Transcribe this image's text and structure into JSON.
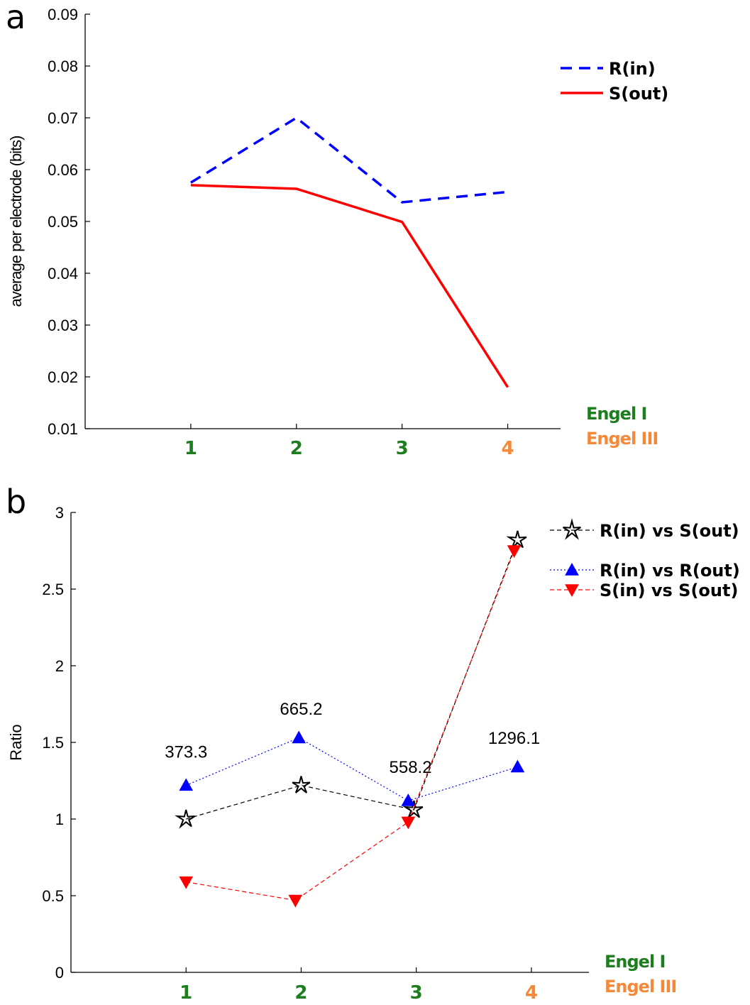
{
  "colors": {
    "engel1": "#1e7d1e",
    "engel3": "#f5893a",
    "blue": "#0000ff",
    "red": "#ff0000",
    "black": "#000000"
  },
  "chart_data": [
    {
      "panel_label": "a",
      "type": "line",
      "title": "",
      "xlabel": "",
      "ylabel": "average per electrode (bits)",
      "x": [
        1,
        2,
        3,
        4
      ],
      "xticklabels": [
        "1",
        "2",
        "3",
        "4"
      ],
      "xtick_groups": [
        "engel1",
        "engel1",
        "engel1",
        "engel3"
      ],
      "ylim": [
        0.01,
        0.09
      ],
      "yticks": [
        "0.01",
        "0.02",
        "0.03",
        "0.04",
        "0.05",
        "0.06",
        "0.07",
        "0.08",
        "0.09"
      ],
      "series": [
        {
          "name": "R(in)",
          "values": [
            0.0575,
            0.07,
            0.0537,
            0.0557
          ],
          "color": "#0000ff",
          "style": "dashed"
        },
        {
          "name": "S(out)",
          "values": [
            0.057,
            0.0563,
            0.0499,
            0.018
          ],
          "color": "#ff0000",
          "style": "solid"
        }
      ],
      "legend_position": "top-right",
      "group_labels": [
        "Engel I",
        "Engel III"
      ],
      "grid": false
    },
    {
      "panel_label": "b",
      "type": "line",
      "title": "",
      "xlabel": "",
      "ylabel": "Ratio",
      "x": [
        1,
        2,
        3,
        4
      ],
      "xticklabels": [
        "1",
        "2",
        "3",
        "4"
      ],
      "xtick_groups": [
        "engel1",
        "engel1",
        "engel1",
        "engel3"
      ],
      "ylim": [
        0,
        3
      ],
      "yticks": [
        "0",
        "0.5",
        "1",
        "1.5",
        "2",
        "2.5",
        "3"
      ],
      "series": [
        {
          "name": "R(in) vs S(out)",
          "x": [
            1,
            2,
            2.98,
            3.88
          ],
          "values": [
            1.0,
            1.22,
            1.06,
            2.82
          ],
          "color": "#000000",
          "marker": "star",
          "style": "dashed"
        },
        {
          "name": "R(in) vs R(out)",
          "x": [
            1,
            1.98,
            2.93,
            3.88
          ],
          "values": [
            1.22,
            1.53,
            1.12,
            1.34
          ],
          "color": "#0000ff",
          "marker": "triangle-up",
          "style": "dotted"
        },
        {
          "name": "S(in) vs S(out)",
          "x": [
            1,
            1.95,
            2.93,
            3.85
          ],
          "values": [
            0.59,
            0.47,
            0.98,
            2.75
          ],
          "color": "#ff0000",
          "marker": "triangle-down",
          "style": "dashed"
        }
      ],
      "annotations": [
        {
          "text": "373.3",
          "x": 1,
          "y": 1.4
        },
        {
          "text": "665.2",
          "x": 2,
          "y": 1.68
        },
        {
          "text": "558.2",
          "x": 2.95,
          "y": 1.3
        },
        {
          "text": "1296.1",
          "x": 3.85,
          "y": 1.49
        }
      ],
      "legend_position": "top-right",
      "group_labels": [
        "Engel I",
        "Engel III"
      ],
      "grid": false
    }
  ]
}
